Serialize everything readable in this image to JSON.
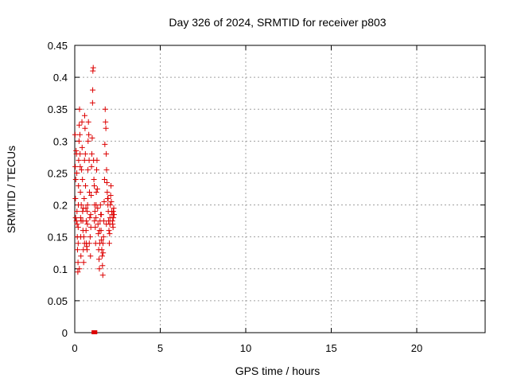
{
  "chart_data": {
    "type": "scatter",
    "title": "Day 326 of 2024, SRMTID for receiver p803",
    "xlabel": "GPS time / hours",
    "ylabel": "SRMTID / TECUs",
    "xlim": [
      0,
      24
    ],
    "ylim": [
      0,
      0.45
    ],
    "xticks": [
      0,
      5,
      10,
      15,
      20
    ],
    "yticks": [
      0,
      0.05,
      0.1,
      0.15,
      0.2,
      0.25,
      0.3,
      0.35,
      0.4,
      0.45
    ],
    "ytick_labels": [
      "0",
      "0.05",
      "0.1",
      "0.15",
      "0.2",
      "0.25",
      "0.3",
      "0.35",
      "0.4",
      "0.45"
    ],
    "grid": true,
    "marker": "plus",
    "color": "#dd0000",
    "series": [
      {
        "points": [
          [
            0.02,
            0.31
          ],
          [
            0.03,
            0.26
          ],
          [
            0.04,
            0.21
          ],
          [
            0.05,
            0.18
          ],
          [
            0.06,
            0.24
          ],
          [
            0.08,
            0.285
          ],
          [
            0.1,
            0.28
          ],
          [
            0.12,
            0.25
          ],
          [
            0.13,
            0.19
          ],
          [
            0.14,
            0.17
          ],
          [
            0.15,
            0.15
          ],
          [
            0.16,
            0.13
          ],
          [
            0.18,
            0.095
          ],
          [
            0.19,
            0.11
          ],
          [
            0.2,
            0.165
          ],
          [
            0.21,
            0.2
          ],
          [
            0.22,
            0.23
          ],
          [
            0.23,
            0.27
          ],
          [
            0.25,
            0.3
          ],
          [
            0.26,
            0.325
          ],
          [
            0.28,
            0.35
          ],
          [
            0.3,
            0.31
          ],
          [
            0.31,
            0.28
          ],
          [
            0.32,
            0.26
          ],
          [
            0.33,
            0.22
          ],
          [
            0.34,
            0.18
          ],
          [
            0.35,
            0.15
          ],
          [
            0.36,
            0.12
          ],
          [
            0.38,
            0.2
          ],
          [
            0.4,
            0.255
          ],
          [
            0.42,
            0.33
          ],
          [
            0.43,
            0.29
          ],
          [
            0.45,
            0.24
          ],
          [
            0.46,
            0.19
          ],
          [
            0.48,
            0.16
          ],
          [
            0.5,
            0.13
          ],
          [
            0.52,
            0.11
          ],
          [
            0.53,
            0.15
          ],
          [
            0.55,
            0.21
          ],
          [
            0.57,
            0.27
          ],
          [
            0.58,
            0.34
          ],
          [
            0.6,
            0.32
          ],
          [
            0.62,
            0.28
          ],
          [
            0.63,
            0.23
          ],
          [
            0.65,
            0.195
          ],
          [
            0.66,
            0.16
          ],
          [
            0.68,
            0.14
          ],
          [
            0.7,
            0.135
          ],
          [
            0.72,
            0.13
          ],
          [
            0.74,
            0.17
          ],
          [
            0.75,
            0.2
          ],
          [
            0.77,
            0.255
          ],
          [
            0.78,
            0.3
          ],
          [
            0.8,
            0.33
          ],
          [
            0.82,
            0.31
          ],
          [
            0.84,
            0.27
          ],
          [
            0.86,
            0.22
          ],
          [
            0.88,
            0.18
          ],
          [
            0.9,
            0.15
          ],
          [
            0.92,
            0.12
          ],
          [
            0.94,
            0.165
          ],
          [
            0.96,
            0.215
          ],
          [
            0.98,
            0.26
          ],
          [
            1.0,
            0.28
          ],
          [
            1.02,
            0.305
          ],
          [
            1.04,
            0.36
          ],
          [
            1.05,
            0.38
          ],
          [
            1.06,
            0.41
          ],
          [
            1.08,
            0.415
          ],
          [
            1.1,
            0.27
          ],
          [
            1.12,
            0.24
          ],
          [
            1.14,
            0.23
          ],
          [
            1.16,
            0.2
          ],
          [
            1.18,
            0.19
          ],
          [
            1.2,
            0.165
          ],
          [
            1.22,
            0.14
          ],
          [
            1.24,
            0.18
          ],
          [
            1.26,
            0.22
          ],
          [
            1.28,
            0.255
          ],
          [
            1.3,
            0.27
          ],
          [
            1.32,
            0.225
          ],
          [
            1.34,
            0.195
          ],
          [
            1.36,
            0.17
          ],
          [
            1.38,
            0.155
          ],
          [
            1.4,
            0.13
          ],
          [
            1.42,
            0.115
          ],
          [
            1.44,
            0.1
          ],
          [
            1.46,
            0.14
          ],
          [
            1.48,
            0.175
          ],
          [
            1.5,
            0.2
          ],
          [
            1.52,
            0.185
          ],
          [
            1.54,
            0.16
          ],
          [
            1.56,
            0.145
          ],
          [
            1.58,
            0.13
          ],
          [
            1.6,
            0.12
          ],
          [
            1.62,
            0.105
          ],
          [
            1.64,
            0.09
          ],
          [
            1.66,
            0.125
          ],
          [
            1.68,
            0.15
          ],
          [
            1.7,
            0.175
          ],
          [
            1.72,
            0.205
          ],
          [
            1.74,
            0.24
          ],
          [
            1.76,
            0.295
          ],
          [
            1.78,
            0.35
          ],
          [
            1.8,
            0.33
          ],
          [
            1.82,
            0.32
          ],
          [
            1.84,
            0.28
          ],
          [
            1.86,
            0.255
          ],
          [
            1.88,
            0.235
          ],
          [
            1.9,
            0.22
          ],
          [
            1.92,
            0.21
          ],
          [
            1.94,
            0.2
          ],
          [
            1.96,
            0.19
          ],
          [
            1.98,
            0.175
          ],
          [
            2.0,
            0.16
          ],
          [
            2.02,
            0.14
          ],
          [
            2.04,
            0.155
          ],
          [
            2.06,
            0.18
          ],
          [
            2.08,
            0.2
          ],
          [
            2.1,
            0.215
          ],
          [
            2.12,
            0.23
          ],
          [
            2.14,
            0.205
          ],
          [
            2.16,
            0.19
          ],
          [
            2.18,
            0.185
          ],
          [
            2.2,
            0.175
          ],
          [
            2.22,
            0.17
          ],
          [
            2.24,
            0.165
          ],
          [
            2.26,
            0.18
          ],
          [
            2.28,
            0.195
          ],
          [
            2.3,
            0.185
          ],
          [
            0.27,
            0.1
          ],
          [
            0.5,
            0.195
          ],
          [
            0.67,
            0.175
          ],
          [
            0.85,
            0.14
          ],
          [
            1.15,
            0.175
          ],
          [
            1.45,
            0.16
          ],
          [
            1.65,
            0.14
          ],
          [
            1.85,
            0.17
          ],
          [
            2.05,
            0.17
          ],
          [
            2.25,
            0.19
          ],
          [
            0.1,
            0.175
          ],
          [
            0.2,
            0.14
          ],
          [
            0.37,
            0.175
          ],
          [
            0.47,
            0.175
          ],
          [
            0.57,
            0.14
          ],
          [
            0.73,
            0.19
          ],
          [
            0.93,
            0.185
          ],
          [
            1.25,
            0.2
          ],
          [
            1.55,
            0.185
          ],
          [
            1.95,
            0.21
          ]
        ]
      },
      {
        "marker": "square",
        "points": [
          [
            1.1,
            0.0
          ],
          [
            1.15,
            0.0
          ],
          [
            1.2,
            0.0
          ]
        ]
      }
    ]
  }
}
